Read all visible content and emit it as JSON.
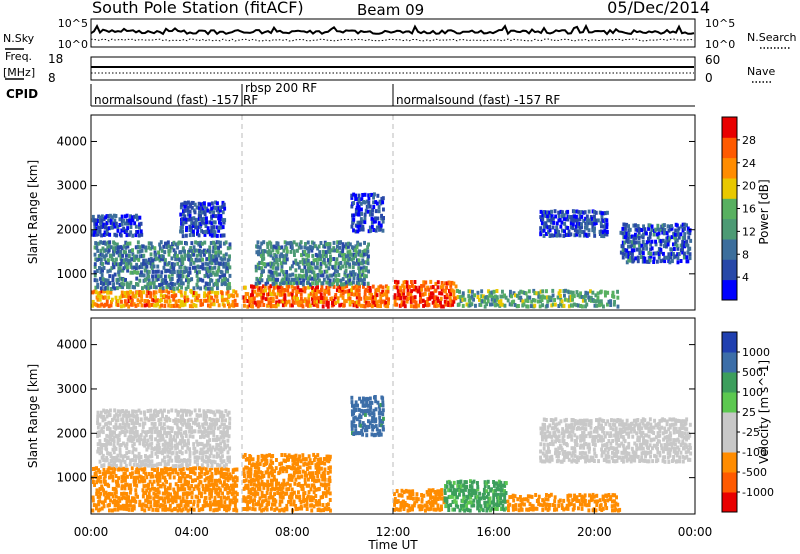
{
  "header": {
    "station": "South Pole Station (fitACF)",
    "beam": "Beam 09",
    "date": "05/Dec/2014"
  },
  "strip_labels": {
    "nsky": "N.Sky",
    "nsky_ticks": [
      "10^5",
      "10^0"
    ],
    "nsearch": "N.Search",
    "nsearch_ticks": [
      "10^5",
      "10^0"
    ],
    "freq_line1": "Freq.",
    "freq_line2": "[MHz]",
    "freq_ticks": [
      "18",
      "8"
    ],
    "nave": "Nave",
    "nave_ticks": [
      "60",
      "0"
    ],
    "cpid": "CPID"
  },
  "cpid_segments": [
    {
      "label": "normalsound (fast) -157 RF",
      "start_hour": 0,
      "end_hour": 6
    },
    {
      "label": "rbsp 200 RF",
      "start_hour": 6,
      "end_hour": 12
    },
    {
      "label": "normalsound (fast) -157 RF",
      "start_hour": 12,
      "end_hour": 24
    }
  ],
  "colors": {
    "power": [
      "#0000ff",
      "#2848a8",
      "#3c6e9c",
      "#4c9a74",
      "#58b060",
      "#e8c800",
      "#ff8c00",
      "#ff5a00",
      "#e80000"
    ],
    "velocity": [
      "#e80000",
      "#ff5a00",
      "#ff8c00",
      "#c8c8c8",
      "#c8c8c8",
      "#5cc850",
      "#3c9e5c",
      "#3c6ea8",
      "#2040b0"
    ]
  },
  "chart_data": [
    {
      "type": "heatmap",
      "panel": "power",
      "xlabel": "",
      "ylabel": "Slant Range [km]",
      "xlim": [
        0,
        24
      ],
      "ylim": [
        180,
        4600
      ],
      "yticks": [
        1000,
        2000,
        3000,
        4000
      ],
      "colorbar": {
        "label": "Power [dB]",
        "ticks": [
          "4",
          "8",
          "12",
          "16",
          "20",
          "24",
          "28"
        ],
        "range": [
          0,
          30
        ]
      },
      "echo_regions": [
        {
          "t0": 0.0,
          "t1": 5.8,
          "r0": 300,
          "r1": 700,
          "level": 22
        },
        {
          "t0": 0.1,
          "t1": 5.5,
          "r0": 700,
          "r1": 1800,
          "level": 9
        },
        {
          "t0": 0.0,
          "t1": 2.0,
          "r0": 1900,
          "r1": 2400,
          "level": 5
        },
        {
          "t0": 3.5,
          "t1": 5.3,
          "r0": 1900,
          "r1": 2700,
          "level": 5
        },
        {
          "t0": 6.0,
          "t1": 11.8,
          "r0": 300,
          "r1": 800,
          "level": 24
        },
        {
          "t0": 6.5,
          "t1": 11.0,
          "r0": 800,
          "r1": 1800,
          "level": 10
        },
        {
          "t0": 10.3,
          "t1": 11.6,
          "r0": 2000,
          "r1": 2900,
          "level": 5
        },
        {
          "t0": 12.0,
          "t1": 14.5,
          "r0": 300,
          "r1": 900,
          "level": 25
        },
        {
          "t0": 14.5,
          "t1": 21.0,
          "r0": 300,
          "r1": 700,
          "level": 13
        },
        {
          "t0": 17.8,
          "t1": 20.5,
          "r0": 1900,
          "r1": 2500,
          "level": 5
        },
        {
          "t0": 21.0,
          "t1": 23.8,
          "r0": 1300,
          "r1": 2200,
          "level": 6
        }
      ]
    },
    {
      "type": "heatmap",
      "panel": "velocity",
      "xlabel": "Time UT",
      "ylabel": "Slant Range [km]",
      "xlim": [
        0,
        24
      ],
      "ylim": [
        180,
        4600
      ],
      "xticks": [
        "00:00",
        "04:00",
        "08:00",
        "12:00",
        "16:00",
        "20:00",
        "00:00"
      ],
      "yticks": [
        1000,
        2000,
        3000,
        4000
      ],
      "colorbar": {
        "label": "Velocity [m s^-1]",
        "ticks": [
          "-1000",
          "-500",
          "-100",
          "-25",
          "25",
          "100",
          "500",
          "1000"
        ],
        "range": [
          -1000,
          1000
        ]
      },
      "echo_regions": [
        {
          "t0": 0.0,
          "t1": 5.8,
          "r0": 300,
          "r1": 1300,
          "level": -300
        },
        {
          "t0": 0.2,
          "t1": 5.5,
          "r0": 1300,
          "r1": 2600,
          "level": 0
        },
        {
          "t0": 6.0,
          "t1": 9.5,
          "r0": 300,
          "r1": 1600,
          "level": -300
        },
        {
          "t0": 10.3,
          "t1": 11.6,
          "r0": 2000,
          "r1": 2900,
          "level": 700
        },
        {
          "t0": 12.0,
          "t1": 14.0,
          "r0": 300,
          "r1": 800,
          "level": -300
        },
        {
          "t0": 14.0,
          "t1": 16.5,
          "r0": 300,
          "r1": 1000,
          "level": 120
        },
        {
          "t0": 16.5,
          "t1": 21.0,
          "r0": 300,
          "r1": 700,
          "level": -300
        },
        {
          "t0": 17.8,
          "t1": 23.8,
          "r0": 1400,
          "r1": 2400,
          "level": 0
        }
      ]
    }
  ]
}
